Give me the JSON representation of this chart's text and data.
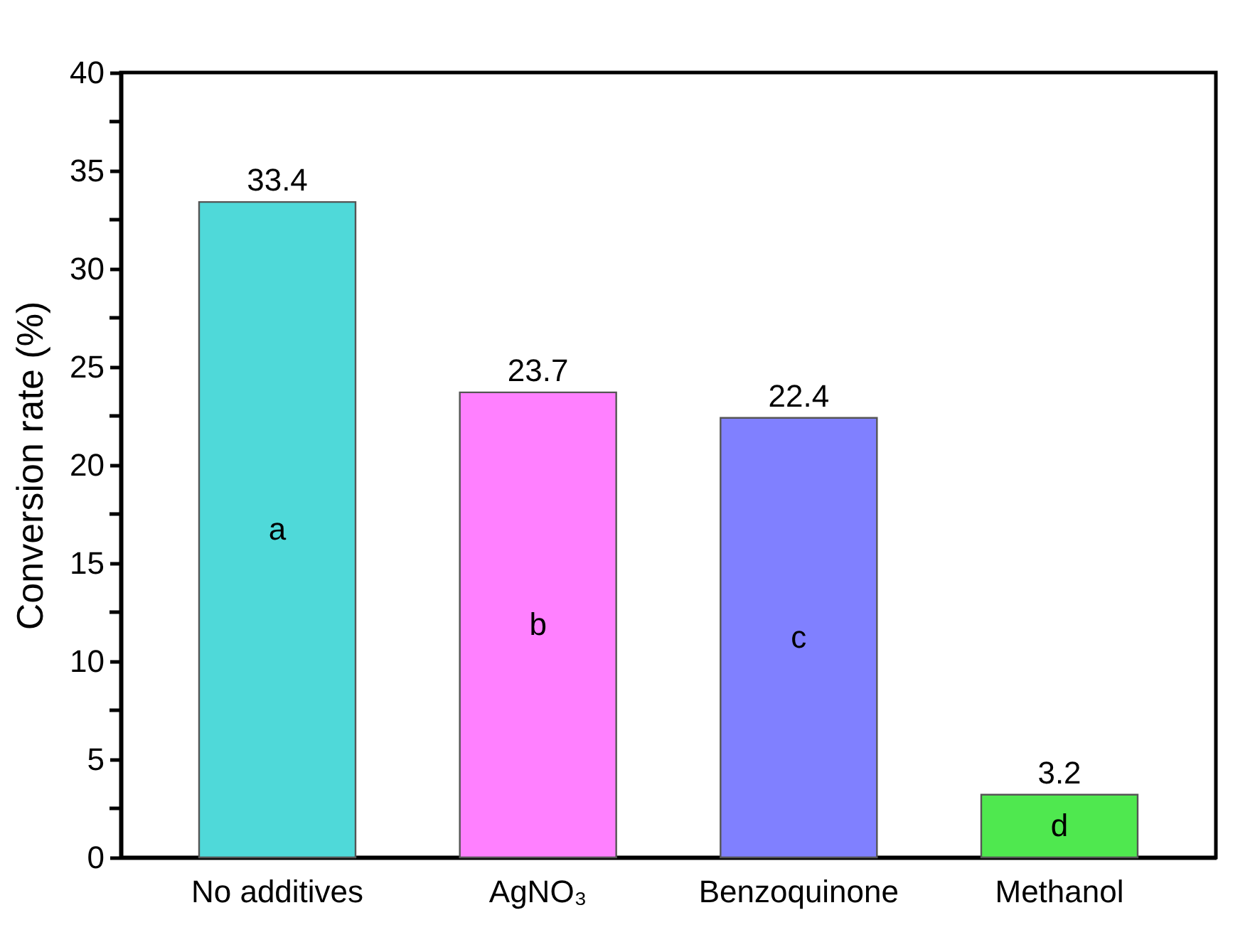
{
  "chart_data": {
    "type": "bar",
    "ylabel": "Conversion rate (%)",
    "categories": [
      "No additives",
      "AgNO₃",
      "Benzoquinone",
      "Methanol"
    ],
    "values": [
      33.4,
      23.7,
      22.4,
      3.2
    ],
    "colors": [
      "#4fd9d9",
      "#ff80ff",
      "#8080ff",
      "#4fe84f"
    ],
    "data_labels": true,
    "ylim": [
      0,
      40
    ],
    "yticks": [
      0,
      {
        "value": 2.5,
        "label": null
      },
      5,
      {
        "value": 7.5,
        "label": null
      },
      10,
      {
        "value": 12.5,
        "label": null
      },
      15,
      {
        "value": 17.5,
        "label": null
      },
      20,
      {
        "value": 22.5,
        "label": null
      },
      25,
      {
        "value": 27.5,
        "label": null
      },
      30,
      {
        "value": 32.5,
        "label": null
      },
      35,
      {
        "value": 37.5,
        "label": null
      },
      40
    ],
    "annotations": [
      "a",
      "b",
      "c",
      "d"
    ],
    "grid": false,
    "legend": false
  }
}
